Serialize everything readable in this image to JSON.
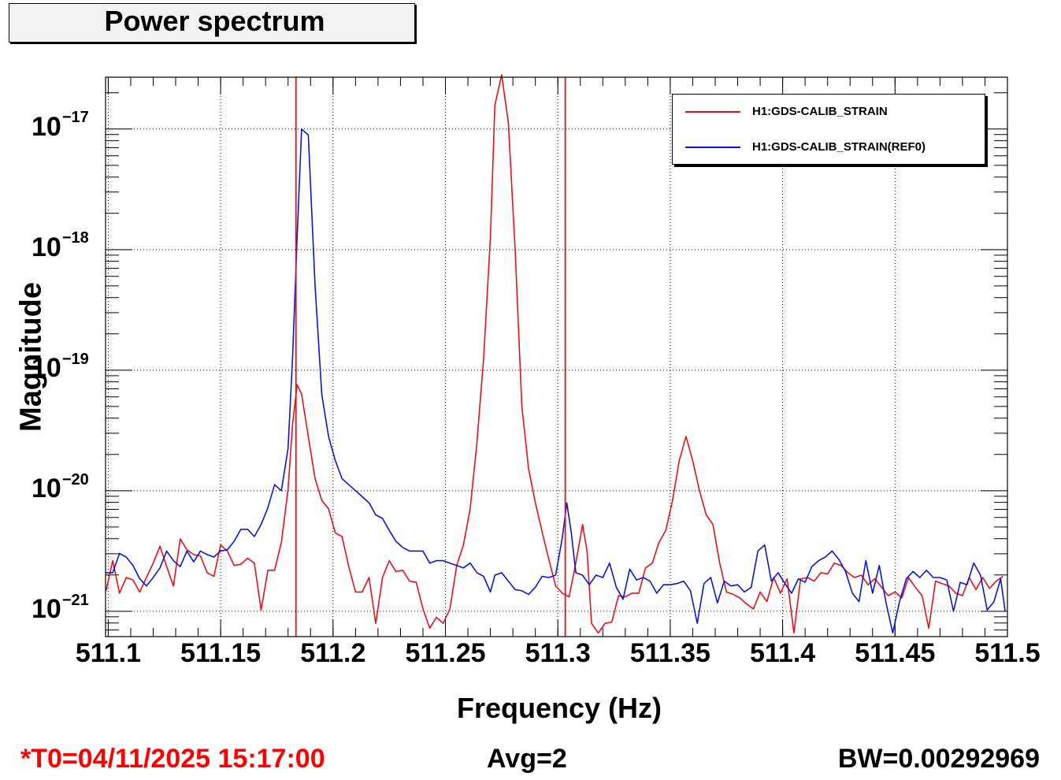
{
  "title": "Power spectrum",
  "footer": {
    "t0": "*T0=04/11/2025 15:17:00",
    "avg": "Avg=2",
    "bw": "BW=0.00292969"
  },
  "colors": {
    "red": "#e8101a",
    "blue": "#0a16d6"
  },
  "chart_data": {
    "type": "line",
    "xlabel": "Frequency (Hz)",
    "ylabel": "Magnitude",
    "xlim": [
      511.0988,
      511.5
    ],
    "ylim_exponent": [
      -21.21,
      -16.57
    ],
    "yscale": "log",
    "grid": true,
    "legend_placement": "top-right",
    "x_ticks": [
      {
        "value": 511.1,
        "label": "511.1"
      },
      {
        "value": 511.15,
        "label": "511.15"
      },
      {
        "value": 511.2,
        "label": "511.2"
      },
      {
        "value": 511.25,
        "label": "511.25"
      },
      {
        "value": 511.3,
        "label": "511.3"
      },
      {
        "value": 511.35,
        "label": "511.35"
      },
      {
        "value": 511.4,
        "label": "511.4"
      },
      {
        "value": 511.45,
        "label": "511.45"
      },
      {
        "value": 511.5,
        "label": "511.5"
      }
    ],
    "y_ticks": [
      {
        "exponent": -17,
        "base": "10",
        "sup": "−17"
      },
      {
        "exponent": -18,
        "base": "10",
        "sup": "−18"
      },
      {
        "exponent": -19,
        "base": "10",
        "sup": "−19"
      },
      {
        "exponent": -20,
        "base": "10",
        "sup": "−20"
      },
      {
        "exponent": -21,
        "base": "10",
        "sup": "−21"
      }
    ],
    "markers": [
      511.1835,
      511.3033
    ],
    "series": [
      {
        "name": "H1:GDS-CALIB_STRAIN",
        "color": "#e8101a",
        "points": [
          [
            511.099,
            -20.83
          ],
          [
            511.102,
            -20.58
          ],
          [
            511.105,
            -20.85
          ],
          [
            511.108,
            -20.72
          ],
          [
            511.111,
            -20.74
          ],
          [
            511.114,
            -20.84
          ],
          [
            511.117,
            -20.72
          ],
          [
            511.12,
            -20.6
          ],
          [
            511.123,
            -20.46
          ],
          [
            511.126,
            -20.63
          ],
          [
            511.129,
            -20.79
          ],
          [
            511.132,
            -20.4
          ],
          [
            511.135,
            -20.49
          ],
          [
            511.138,
            -20.53
          ],
          [
            511.141,
            -20.54
          ],
          [
            511.144,
            -20.68
          ],
          [
            511.147,
            -20.71
          ],
          [
            511.15,
            -20.45
          ],
          [
            511.153,
            -20.5
          ],
          [
            511.156,
            -20.62
          ],
          [
            511.159,
            -20.61
          ],
          [
            511.162,
            -20.56
          ],
          [
            511.165,
            -20.6
          ],
          [
            511.168,
            -20.99
          ],
          [
            511.171,
            -20.66
          ],
          [
            511.174,
            -20.66
          ],
          [
            511.177,
            -20.43
          ],
          [
            511.18,
            -19.99
          ],
          [
            511.182,
            -19.45
          ],
          [
            511.184,
            -19.12
          ],
          [
            511.186,
            -19.2
          ],
          [
            511.189,
            -19.55
          ],
          [
            511.192,
            -19.9
          ],
          [
            511.195,
            -20.08
          ],
          [
            511.198,
            -20.15
          ],
          [
            511.201,
            -20.35
          ],
          [
            511.204,
            -20.38
          ],
          [
            511.207,
            -20.63
          ],
          [
            511.21,
            -20.84
          ],
          [
            511.213,
            -20.84
          ],
          [
            511.216,
            -20.72
          ],
          [
            511.219,
            -21.1
          ],
          [
            511.222,
            -20.72
          ],
          [
            511.225,
            -20.58
          ],
          [
            511.228,
            -20.67
          ],
          [
            511.231,
            -20.66
          ],
          [
            511.234,
            -20.75
          ],
          [
            511.237,
            -20.76
          ],
          [
            511.24,
            -20.98
          ],
          [
            511.243,
            -21.14
          ],
          [
            511.246,
            -21.05
          ],
          [
            511.249,
            -21.1
          ],
          [
            511.252,
            -20.98
          ],
          [
            511.255,
            -20.62
          ],
          [
            511.258,
            -20.45
          ],
          [
            511.261,
            -20.15
          ],
          [
            511.264,
            -19.6
          ],
          [
            511.267,
            -18.9
          ],
          [
            511.27,
            -17.9
          ],
          [
            511.272,
            -16.8
          ],
          [
            511.275,
            -16.55
          ],
          [
            511.278,
            -16.95
          ],
          [
            511.281,
            -18.0
          ],
          [
            511.284,
            -19.3
          ],
          [
            511.287,
            -19.82
          ],
          [
            511.29,
            -20.1
          ],
          [
            511.293,
            -20.34
          ],
          [
            511.296,
            -20.57
          ],
          [
            511.299,
            -20.79
          ],
          [
            511.302,
            -20.85
          ],
          [
            511.305,
            -20.88
          ],
          [
            511.308,
            -20.6
          ],
          [
            511.311,
            -20.28
          ],
          [
            511.313,
            -20.5
          ],
          [
            511.315,
            -21.1
          ],
          [
            511.318,
            -21.18
          ],
          [
            511.321,
            -21.1
          ],
          [
            511.324,
            -21.09
          ],
          [
            511.327,
            -20.87
          ],
          [
            511.33,
            -20.88
          ],
          [
            511.333,
            -20.85
          ],
          [
            511.336,
            -20.85
          ],
          [
            511.339,
            -20.64
          ],
          [
            511.342,
            -20.6
          ],
          [
            511.345,
            -20.43
          ],
          [
            511.348,
            -20.33
          ],
          [
            511.351,
            -20.08
          ],
          [
            511.354,
            -19.75
          ],
          [
            511.357,
            -19.55
          ],
          [
            511.36,
            -19.75
          ],
          [
            511.363,
            -20.0
          ],
          [
            511.366,
            -20.2
          ],
          [
            511.369,
            -20.28
          ],
          [
            511.372,
            -20.6
          ],
          [
            511.375,
            -20.84
          ],
          [
            511.378,
            -20.86
          ],
          [
            511.381,
            -20.89
          ],
          [
            511.384,
            -20.94
          ],
          [
            511.387,
            -20.98
          ],
          [
            511.39,
            -20.84
          ],
          [
            511.393,
            -20.92
          ],
          [
            511.396,
            -20.72
          ],
          [
            511.399,
            -20.85
          ],
          [
            511.402,
            -20.73
          ],
          [
            511.405,
            -21.18
          ],
          [
            511.408,
            -20.73
          ],
          [
            511.411,
            -20.72
          ],
          [
            511.414,
            -20.75
          ],
          [
            511.417,
            -20.68
          ],
          [
            511.42,
            -20.69
          ],
          [
            511.423,
            -20.6
          ],
          [
            511.426,
            -20.62
          ],
          [
            511.429,
            -20.68
          ],
          [
            511.432,
            -20.72
          ],
          [
            511.435,
            -20.7
          ],
          [
            511.438,
            -20.78
          ],
          [
            511.441,
            -20.73
          ],
          [
            511.444,
            -20.8
          ],
          [
            511.447,
            -20.87
          ],
          [
            511.45,
            -20.84
          ],
          [
            511.453,
            -20.89
          ],
          [
            511.456,
            -20.72
          ],
          [
            511.459,
            -20.8
          ],
          [
            511.462,
            -20.87
          ],
          [
            511.465,
            -21.14
          ],
          [
            511.468,
            -20.75
          ],
          [
            511.471,
            -20.77
          ],
          [
            511.474,
            -20.79
          ],
          [
            511.477,
            -20.85
          ],
          [
            511.48,
            -20.87
          ],
          [
            511.483,
            -20.72
          ],
          [
            511.486,
            -20.82
          ],
          [
            511.489,
            -20.72
          ],
          [
            511.492,
            -20.81
          ],
          [
            511.495,
            -20.75
          ],
          [
            511.498,
            -20.71
          ]
        ]
      },
      {
        "name": "H1:GDS-CALIB_STRAIN(REF0)",
        "color": "#0a16d6",
        "points": [
          [
            511.099,
            -20.68
          ],
          [
            511.102,
            -20.68
          ],
          [
            511.105,
            -20.52
          ],
          [
            511.108,
            -20.55
          ],
          [
            511.111,
            -20.62
          ],
          [
            511.114,
            -20.73
          ],
          [
            511.117,
            -20.79
          ],
          [
            511.12,
            -20.72
          ],
          [
            511.123,
            -20.64
          ],
          [
            511.126,
            -20.5
          ],
          [
            511.129,
            -20.58
          ],
          [
            511.132,
            -20.63
          ],
          [
            511.135,
            -20.5
          ],
          [
            511.138,
            -20.59
          ],
          [
            511.141,
            -20.5
          ],
          [
            511.144,
            -20.53
          ],
          [
            511.147,
            -20.55
          ],
          [
            511.15,
            -20.5
          ],
          [
            511.153,
            -20.49
          ],
          [
            511.156,
            -20.42
          ],
          [
            511.159,
            -20.32
          ],
          [
            511.162,
            -20.32
          ],
          [
            511.165,
            -20.38
          ],
          [
            511.168,
            -20.28
          ],
          [
            511.171,
            -20.14
          ],
          [
            511.174,
            -19.95
          ],
          [
            511.177,
            -20.0
          ],
          [
            511.18,
            -19.65
          ],
          [
            511.182,
            -18.9
          ],
          [
            511.184,
            -17.9
          ],
          [
            511.186,
            -17.0
          ],
          [
            511.189,
            -17.05
          ],
          [
            511.192,
            -18.3
          ],
          [
            511.195,
            -19.2
          ],
          [
            511.198,
            -19.55
          ],
          [
            511.201,
            -19.75
          ],
          [
            511.204,
            -19.9
          ],
          [
            511.207,
            -19.95
          ],
          [
            511.21,
            -20.0
          ],
          [
            511.213,
            -20.05
          ],
          [
            511.216,
            -20.1
          ],
          [
            511.219,
            -20.2
          ],
          [
            511.222,
            -20.23
          ],
          [
            511.225,
            -20.33
          ],
          [
            511.228,
            -20.42
          ],
          [
            511.231,
            -20.47
          ],
          [
            511.234,
            -20.5
          ],
          [
            511.237,
            -20.5
          ],
          [
            511.24,
            -20.5
          ],
          [
            511.243,
            -20.6
          ],
          [
            511.246,
            -20.58
          ],
          [
            511.249,
            -20.58
          ],
          [
            511.252,
            -20.6
          ],
          [
            511.255,
            -20.62
          ],
          [
            511.258,
            -20.64
          ],
          [
            511.261,
            -20.6
          ],
          [
            511.264,
            -20.68
          ],
          [
            511.267,
            -20.71
          ],
          [
            511.27,
            -20.84
          ],
          [
            511.272,
            -20.7
          ],
          [
            511.275,
            -20.68
          ],
          [
            511.278,
            -20.75
          ],
          [
            511.281,
            -20.82
          ],
          [
            511.284,
            -20.83
          ],
          [
            511.287,
            -20.86
          ],
          [
            511.29,
            -20.8
          ],
          [
            511.293,
            -20.71
          ],
          [
            511.296,
            -20.72
          ],
          [
            511.299,
            -20.7
          ],
          [
            511.302,
            -20.39
          ],
          [
            511.304,
            -20.1
          ],
          [
            511.306,
            -20.35
          ],
          [
            511.308,
            -20.68
          ],
          [
            511.311,
            -20.7
          ],
          [
            511.314,
            -20.78
          ],
          [
            511.317,
            -20.7
          ],
          [
            511.32,
            -20.72
          ],
          [
            511.323,
            -20.6
          ],
          [
            511.326,
            -20.8
          ],
          [
            511.329,
            -20.9
          ],
          [
            511.332,
            -20.65
          ],
          [
            511.335,
            -20.74
          ],
          [
            511.338,
            -20.72
          ],
          [
            511.341,
            -20.75
          ],
          [
            511.344,
            -20.85
          ],
          [
            511.347,
            -20.78
          ],
          [
            511.35,
            -20.78
          ],
          [
            511.353,
            -20.77
          ],
          [
            511.356,
            -20.75
          ],
          [
            511.359,
            -20.83
          ],
          [
            511.362,
            -21.1
          ],
          [
            511.365,
            -20.77
          ],
          [
            511.368,
            -20.72
          ],
          [
            511.371,
            -20.93
          ],
          [
            511.374,
            -20.75
          ],
          [
            511.377,
            -20.79
          ],
          [
            511.38,
            -20.78
          ],
          [
            511.383,
            -20.84
          ],
          [
            511.386,
            -20.8
          ],
          [
            511.389,
            -20.5
          ],
          [
            511.392,
            -20.45
          ],
          [
            511.395,
            -20.75
          ],
          [
            511.398,
            -20.68
          ],
          [
            511.401,
            -20.77
          ],
          [
            511.404,
            -20.85
          ],
          [
            511.407,
            -20.73
          ],
          [
            511.41,
            -20.76
          ],
          [
            511.413,
            -20.63
          ],
          [
            511.416,
            -20.58
          ],
          [
            511.419,
            -20.55
          ],
          [
            511.422,
            -20.5
          ],
          [
            511.425,
            -20.57
          ],
          [
            511.428,
            -20.67
          ],
          [
            511.431,
            -20.85
          ],
          [
            511.434,
            -20.92
          ],
          [
            511.437,
            -20.58
          ],
          [
            511.44,
            -20.85
          ],
          [
            511.443,
            -20.62
          ],
          [
            511.446,
            -20.93
          ],
          [
            511.449,
            -21.18
          ],
          [
            511.452,
            -20.92
          ],
          [
            511.455,
            -20.73
          ],
          [
            511.458,
            -20.67
          ],
          [
            511.461,
            -20.72
          ],
          [
            511.464,
            -20.66
          ],
          [
            511.467,
            -20.72
          ],
          [
            511.47,
            -20.72
          ],
          [
            511.473,
            -20.74
          ],
          [
            511.476,
            -21.0
          ],
          [
            511.479,
            -20.76
          ],
          [
            511.482,
            -20.78
          ],
          [
            511.485,
            -20.6
          ],
          [
            511.488,
            -20.7
          ],
          [
            511.491,
            -20.99
          ],
          [
            511.494,
            -20.92
          ],
          [
            511.497,
            -20.73
          ],
          [
            511.499,
            -21.0
          ]
        ]
      }
    ]
  }
}
